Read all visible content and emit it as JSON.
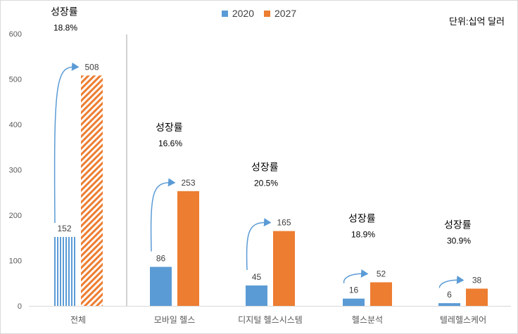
{
  "colors": {
    "series_2020": "#5b9bd5",
    "series_2027": "#ed7d31",
    "axis_text": "#595959",
    "label_text": "#404040",
    "arrow": "#5b9bd5",
    "divider": "#a6a6a6"
  },
  "unit_label": "단위:십억 달러",
  "chart_data": {
    "type": "bar",
    "categories": [
      "전체",
      "모바일 헬스",
      "디지털 헬스시스템",
      "헬스분석",
      "텔레헬스케어"
    ],
    "series": [
      {
        "name": "2020",
        "values": [
          152,
          86,
          45,
          16,
          6
        ],
        "value_labels": [
          "152",
          "86",
          "45",
          "16",
          "6"
        ]
      },
      {
        "name": "2027",
        "values": [
          508,
          253,
          165,
          52,
          38
        ],
        "value_labels": [
          "508",
          "253",
          "165",
          "52",
          "38"
        ]
      }
    ],
    "yticks": [
      "0",
      "100",
      "200",
      "300",
      "400",
      "500",
      "600"
    ],
    "ylim": [
      0,
      600
    ],
    "grid": false,
    "legend_position": "top-center",
    "pattern_fill_category": "전체",
    "annotations": [
      {
        "title": "성장률",
        "rate": "18.8%"
      },
      {
        "title": "성장률",
        "rate": "16.6%"
      },
      {
        "title": "성장률",
        "rate": "20.5%"
      },
      {
        "title": "성장률",
        "rate": "18.9%"
      },
      {
        "title": "성장률",
        "rate": "30.9%"
      }
    ]
  }
}
